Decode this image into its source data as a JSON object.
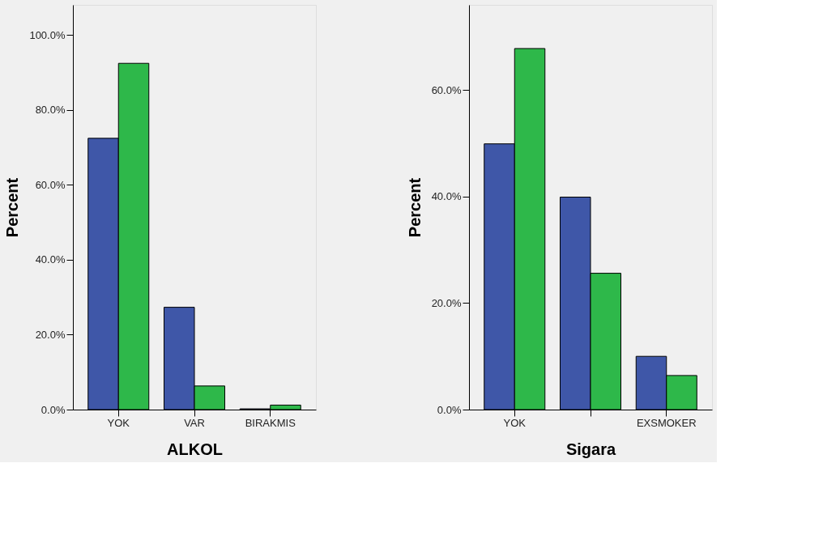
{
  "chart_data": [
    {
      "type": "bar",
      "xlabel": "ALKOL",
      "ylabel": "Percent",
      "categories": [
        "YOK",
        "VAR",
        "BIRAKMIS"
      ],
      "series": [
        {
          "color": "#3f57a8",
          "values": [
            72.4,
            27.3,
            0.2
          ]
        },
        {
          "color": "#2eb84a",
          "values": [
            92.4,
            6.3,
            1.2
          ]
        }
      ],
      "ylim": [
        0,
        108
      ],
      "yticks": [
        {
          "value": 0,
          "label": "0.0%"
        },
        {
          "value": 20,
          "label": "20.0%"
        },
        {
          "value": 40,
          "label": "40.0%"
        },
        {
          "value": 60,
          "label": "60.0%"
        },
        {
          "value": 80,
          "label": "80.0%"
        },
        {
          "value": 100,
          "label": "100.0%"
        }
      ],
      "grid": false,
      "legend": false
    },
    {
      "type": "bar",
      "xlabel": "Sigara",
      "ylabel": "Percent",
      "categories": [
        "YOK",
        null,
        "EXSMOKER"
      ],
      "series": [
        {
          "color": "#3f57a8",
          "values": [
            49.9,
            39.9,
            10.0
          ]
        },
        {
          "color": "#2eb84a",
          "values": [
            67.8,
            25.6,
            6.4
          ]
        }
      ],
      "ylim": [
        0,
        76
      ],
      "yticks": [
        {
          "value": 0,
          "label": "0.0%"
        },
        {
          "value": 20,
          "label": "20.0%"
        },
        {
          "value": 40,
          "label": "40.0%"
        },
        {
          "value": 60,
          "label": "60.0%"
        }
      ],
      "grid": false,
      "legend": false
    }
  ]
}
